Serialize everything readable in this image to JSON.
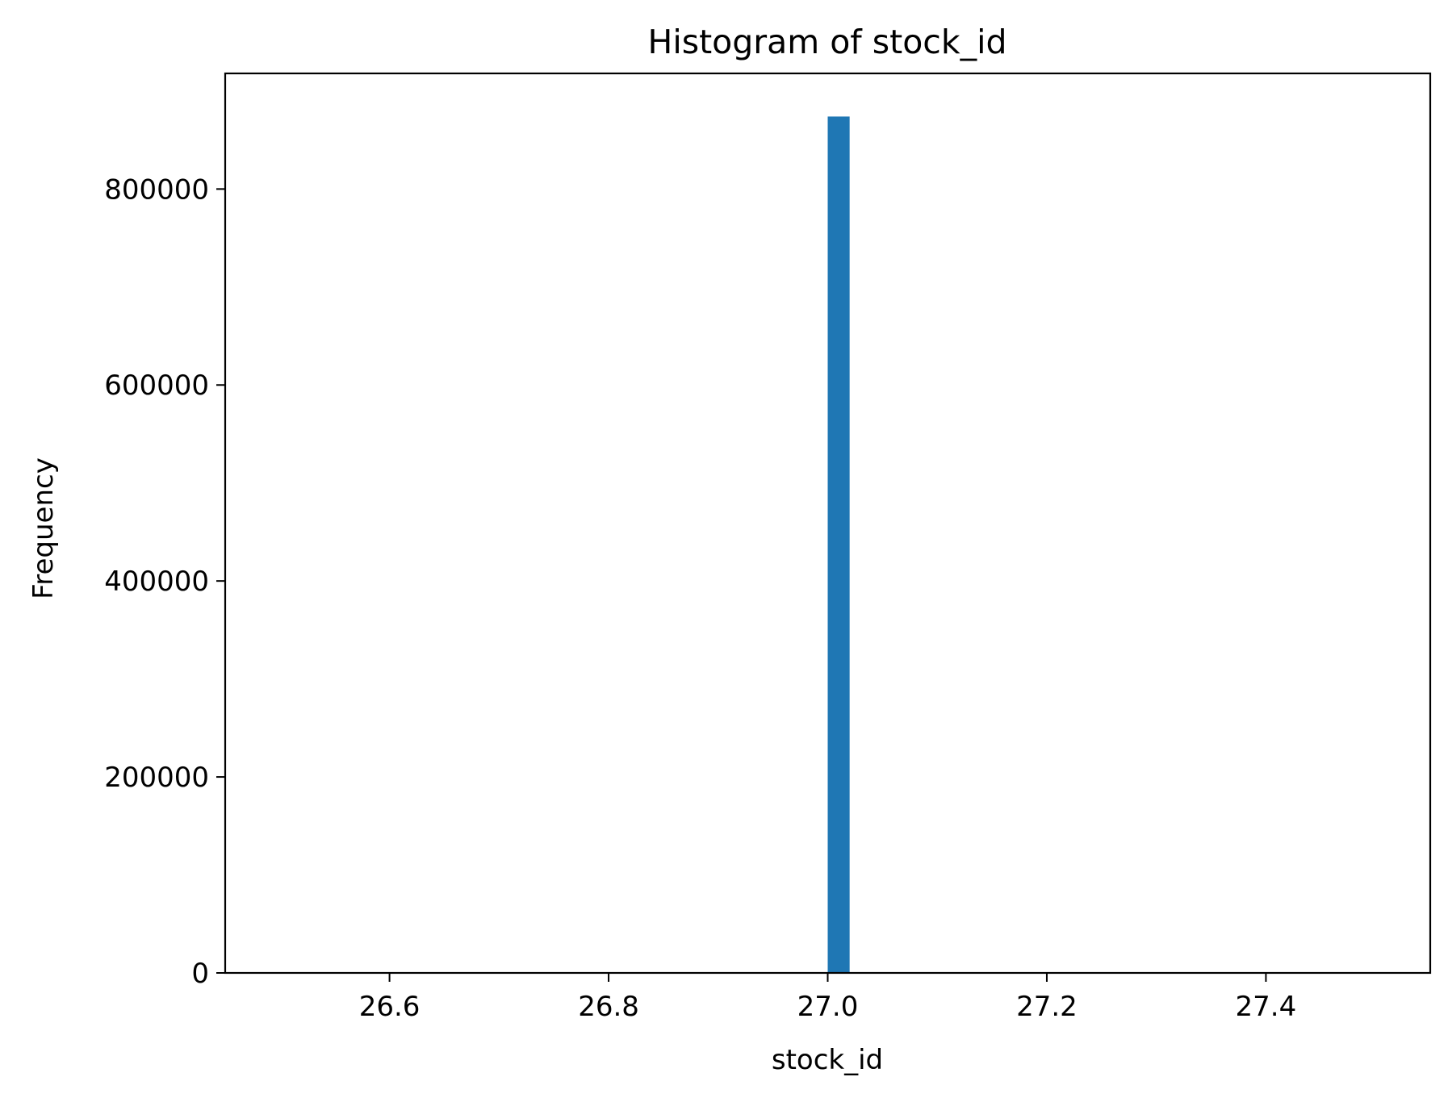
{
  "chart_data": {
    "type": "bar",
    "title": "Histogram of stock_id",
    "xlabel": "stock_id",
    "ylabel": "Frequency",
    "xlim": [
      26.45,
      27.55
    ],
    "ylim": [
      0,
      918000
    ],
    "x_ticks": [
      {
        "value": 26.6,
        "label": "26.6"
      },
      {
        "value": 26.8,
        "label": "26.8"
      },
      {
        "value": 27.0,
        "label": "27.0"
      },
      {
        "value": 27.2,
        "label": "27.2"
      },
      {
        "value": 27.4,
        "label": "27.4"
      }
    ],
    "y_ticks": [
      {
        "value": 0,
        "label": "0"
      },
      {
        "value": 200000,
        "label": "200000"
      },
      {
        "value": 400000,
        "label": "400000"
      },
      {
        "value": 600000,
        "label": "600000"
      },
      {
        "value": 800000,
        "label": "800000"
      }
    ],
    "bins": [
      {
        "x_start": 27.0,
        "x_end": 27.02,
        "count": 874000
      }
    ],
    "bar_color": "#1f77b4",
    "grid": false,
    "legend": "none"
  }
}
